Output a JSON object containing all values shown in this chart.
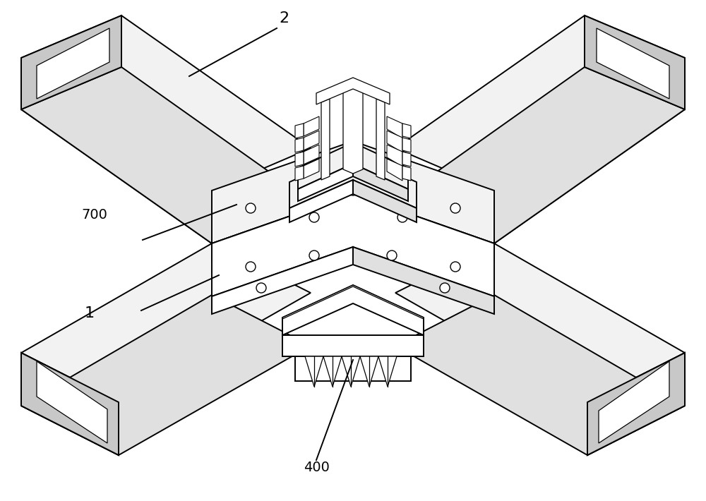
{
  "background_color": "#ffffff",
  "line_color": "#000000",
  "white": "#ffffff",
  "light_gray": "#f2f2f2",
  "mid_gray": "#e0e0e0",
  "dark_gray": "#c8c8c8",
  "figsize": [
    10.0,
    7.1
  ],
  "dpi": 100,
  "lw_main": 1.4,
  "lw_thin": 0.9,
  "lw_label": 1.2
}
